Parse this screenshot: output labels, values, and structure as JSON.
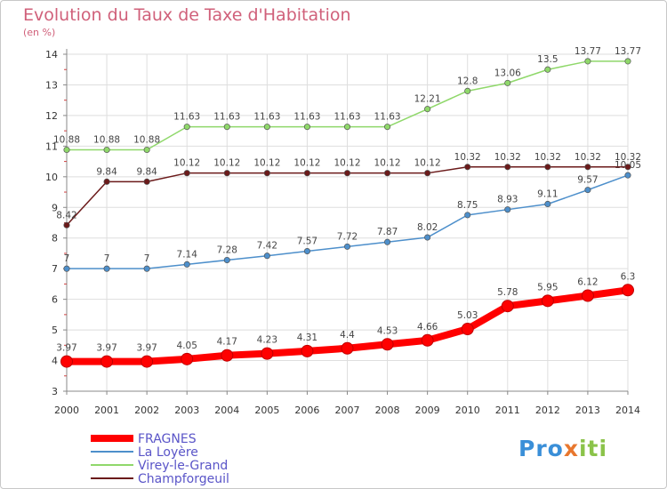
{
  "header": {
    "title": "Evolution du Taux de Taxe d'Habitation",
    "subtitle": "(en %)"
  },
  "logo": {
    "text": "Proxiti",
    "part1": "Pro",
    "part2": "x",
    "part3": "iti"
  },
  "chart_data": {
    "type": "line",
    "title": "Evolution du Taux de Taxe d'Habitation",
    "ylabel": "(en %)",
    "xlabel": "",
    "x": [
      "2000",
      "2001",
      "2002",
      "2003",
      "2004",
      "2005",
      "2006",
      "2007",
      "2008",
      "2009",
      "2010",
      "2011",
      "2012",
      "2013",
      "2014"
    ],
    "ylim": [
      3,
      14
    ],
    "yticks": [
      3,
      4,
      5,
      6,
      7,
      8,
      9,
      10,
      11,
      12,
      13,
      14
    ],
    "grid": true,
    "legend": "bottom-left",
    "series": [
      {
        "name": "FRAGNES",
        "color": "#ff0000",
        "thick": true,
        "values": [
          3.97,
          3.97,
          3.97,
          4.05,
          4.17,
          4.23,
          4.31,
          4.4,
          4.53,
          4.66,
          5.03,
          5.78,
          5.95,
          6.12,
          6.3
        ],
        "labels": [
          "3.97",
          "3.97",
          "3.97",
          "4.05",
          "4.17",
          "4.23",
          "4.31",
          "4.4",
          "4.53",
          "4.66",
          "5.03",
          "5.78",
          "5.95",
          "6.12",
          "6.3"
        ]
      },
      {
        "name": "La Loyère",
        "color": "#4d8fcb",
        "thick": false,
        "values": [
          7,
          7,
          7,
          7.14,
          7.28,
          7.42,
          7.57,
          7.72,
          7.87,
          8.02,
          8.75,
          8.93,
          9.11,
          9.57,
          10.05
        ],
        "labels": [
          "7",
          "7",
          "7",
          "7.14",
          "7.28",
          "7.42",
          "7.57",
          "7.72",
          "7.87",
          "8.02",
          "8.75",
          "8.93",
          "9.11",
          "9.57",
          "10.05"
        ]
      },
      {
        "name": "Virey-le-Grand",
        "color": "#8fd86a",
        "thick": false,
        "values": [
          10.88,
          10.88,
          10.88,
          11.63,
          11.63,
          11.63,
          11.63,
          11.63,
          11.63,
          12.21,
          12.8,
          13.06,
          13.5,
          13.77,
          13.77
        ],
        "labels": [
          "10.88",
          "10.88",
          "10.88",
          "11.63",
          "11.63",
          "11.63",
          "11.63",
          "11.63",
          "11.63",
          "12.21",
          "12.8",
          "13.06",
          "13.5",
          "13.77",
          "13.77"
        ]
      },
      {
        "name": "Champforgeuil",
        "color": "#6b1a1a",
        "thick": false,
        "values": [
          8.42,
          9.84,
          9.84,
          10.12,
          10.12,
          10.12,
          10.12,
          10.12,
          10.12,
          10.12,
          10.32,
          10.32,
          10.32,
          10.32,
          10.32
        ],
        "labels": [
          "8.42",
          "9.84",
          "9.84",
          "10.12",
          "10.12",
          "10.12",
          "10.12",
          "10.12",
          "10.12",
          "10.12",
          "10.32",
          "10.32",
          "10.32",
          "10.32",
          "10.32"
        ]
      }
    ]
  }
}
